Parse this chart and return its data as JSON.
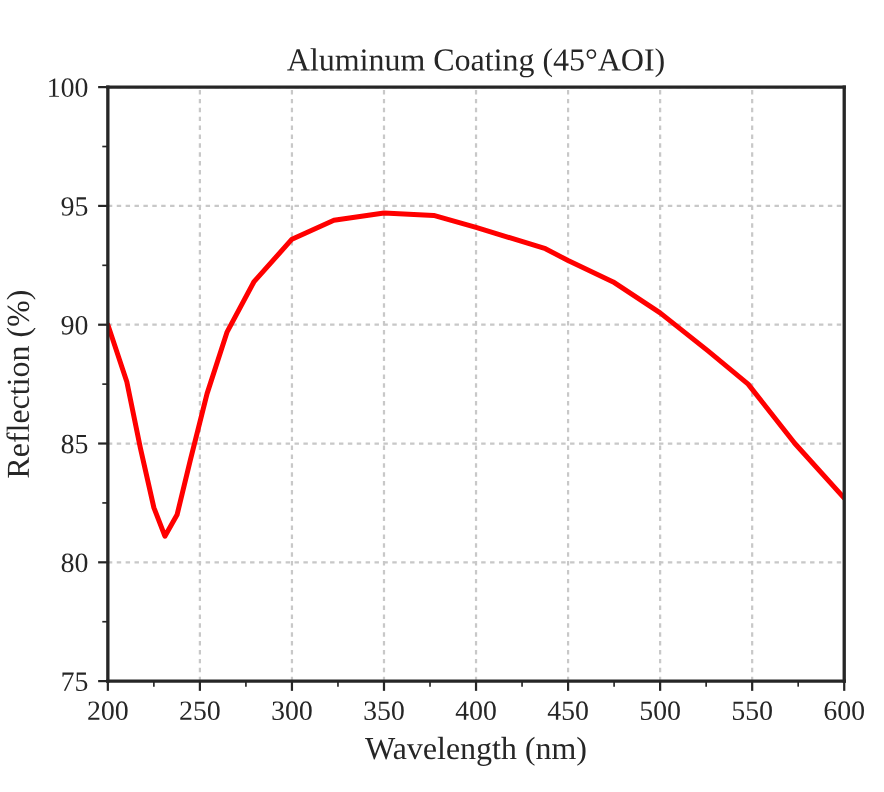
{
  "chart_data": {
    "type": "line",
    "title": "Aluminum Coating (45°AOI)",
    "xlabel": "Wavelength (nm)",
    "ylabel": "Reflection (%)",
    "xlim": [
      200,
      600
    ],
    "xticks": [
      200,
      250,
      300,
      350,
      400,
      450,
      500,
      550,
      600
    ],
    "ylim": [
      75,
      100
    ],
    "yticks": [
      75,
      80,
      85,
      90,
      95,
      100
    ],
    "grid": true,
    "marker": "none",
    "line_style": "solid",
    "series": [
      {
        "color": "#ff0000",
        "x": [
          200,
          210.3,
          217.7,
          225,
          231,
          237.6,
          244.8,
          253.9,
          264.8,
          279.3,
          300,
          322.8,
          350,
          377,
          400,
          437.7,
          450,
          474.5,
          500,
          526,
          547.8,
          573.2,
          600
        ],
        "values": [
          90.0,
          87.6,
          84.8,
          82.3,
          81.1,
          82.0,
          84.3,
          87.1,
          89.7,
          91.8,
          93.6,
          94.4,
          94.7,
          94.6,
          94.1,
          93.2,
          92.7,
          91.8,
          90.5,
          88.9,
          87.5,
          85.0,
          82.7
        ]
      }
    ]
  }
}
